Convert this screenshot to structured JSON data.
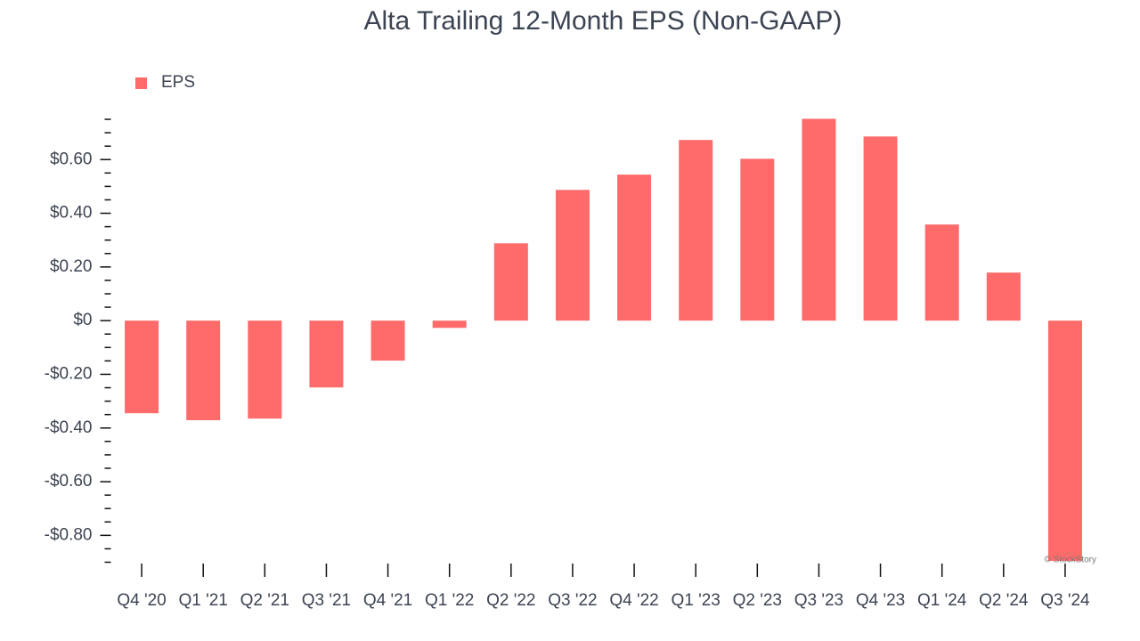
{
  "chart_data": {
    "type": "bar",
    "title": "Alta Trailing 12-Month EPS (Non-GAAP)",
    "watermark": "© StockStory",
    "categories": [
      "Q4 '20",
      "Q1 '21",
      "Q2 '21",
      "Q3 '21",
      "Q4 '21",
      "Q1 '22",
      "Q2 '22",
      "Q3 '22",
      "Q4 '22",
      "Q1 '23",
      "Q2 '23",
      "Q3 '23",
      "Q4 '23",
      "Q1 '24",
      "Q2 '24",
      "Q3 '24"
    ],
    "series": [
      {
        "name": "EPS",
        "color": "#ff6b6b",
        "values": [
          -0.345,
          -0.371,
          -0.365,
          -0.249,
          -0.149,
          -0.027,
          0.288,
          0.487,
          0.544,
          0.673,
          0.603,
          0.752,
          0.686,
          0.358,
          0.179,
          -0.895
        ]
      }
    ],
    "ylim": [
      -0.9,
      0.76
    ],
    "yticks": [
      {
        "value": -0.8,
        "label": "-$0.80"
      },
      {
        "value": -0.6,
        "label": "-$0.60"
      },
      {
        "value": -0.4,
        "label": "-$0.40"
      },
      {
        "value": -0.2,
        "label": "-$0.20"
      },
      {
        "value": 0,
        "label": "$0"
      },
      {
        "value": 0.2,
        "label": "$0.20"
      },
      {
        "value": 0.4,
        "label": "$0.40"
      },
      {
        "value": 0.6,
        "label": "$0.60"
      }
    ],
    "yminorticks": [
      -0.9,
      -0.85,
      -0.75,
      -0.7,
      -0.65,
      -0.55,
      -0.5,
      -0.45,
      -0.35,
      -0.3,
      -0.25,
      -0.15,
      -0.1,
      -0.05,
      0.05,
      0.1,
      0.15,
      0.25,
      0.3,
      0.35,
      0.45,
      0.5,
      0.55,
      0.65,
      0.7,
      0.75
    ],
    "legend": "top-left",
    "grid": false
  }
}
